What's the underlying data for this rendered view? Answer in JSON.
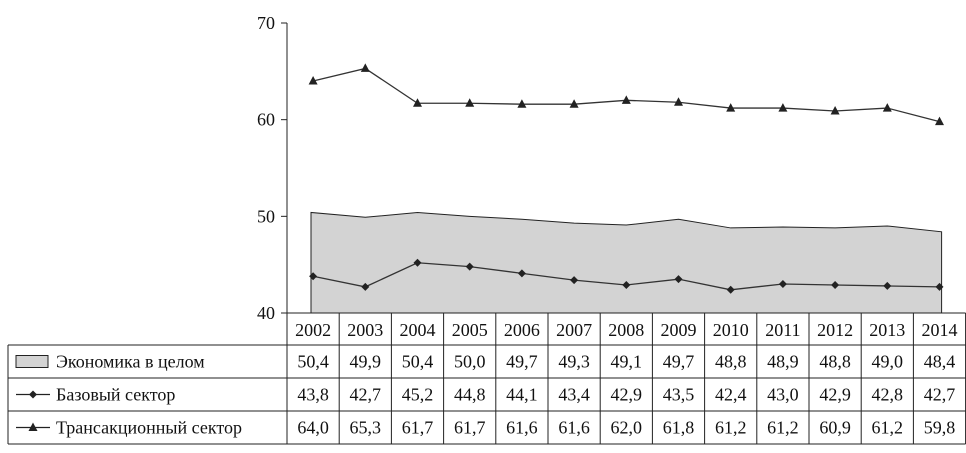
{
  "chart_data": {
    "type": "line",
    "ylim": [
      40,
      70
    ],
    "yticks": [
      "40",
      "50",
      "60",
      "70"
    ],
    "categories": [
      "2002",
      "2003",
      "2004",
      "2005",
      "2006",
      "2007",
      "2008",
      "2009",
      "2010",
      "2011",
      "2012",
      "2013",
      "2014"
    ],
    "series": [
      {
        "name": "Экономика в целом",
        "style": "area",
        "color": "#d3d3d3",
        "values": [
          50.4,
          49.9,
          50.4,
          50.0,
          49.7,
          49.3,
          49.1,
          49.7,
          48.8,
          48.9,
          48.8,
          49.0,
          48.4
        ],
        "labels": [
          "50,4",
          "49,9",
          "50,4",
          "50,0",
          "49,7",
          "49,3",
          "49,1",
          "49,7",
          "48,8",
          "48,9",
          "48,8",
          "49,0",
          "48,4"
        ]
      },
      {
        "name": "Базовый сектор",
        "style": "line",
        "marker": "diamond",
        "color": "#333333",
        "values": [
          43.8,
          42.7,
          45.2,
          44.8,
          44.1,
          43.4,
          42.9,
          43.5,
          42.4,
          43.0,
          42.9,
          42.8,
          42.7
        ],
        "labels": [
          "43,8",
          "42,7",
          "45,2",
          "44,8",
          "44,1",
          "43,4",
          "42,9",
          "43,5",
          "42,4",
          "43,0",
          "42,9",
          "42,8",
          "42,7"
        ]
      },
      {
        "name": "Трансакционный сектор",
        "style": "line",
        "marker": "triangle",
        "color": "#333333",
        "values": [
          64.0,
          65.3,
          61.7,
          61.7,
          61.6,
          61.6,
          62.0,
          61.8,
          61.2,
          61.2,
          60.9,
          61.2,
          59.8
        ],
        "labels": [
          "64,0",
          "65,3",
          "61,7",
          "61,7",
          "61,6",
          "61,6",
          "62,0",
          "61,8",
          "61,2",
          "61,2",
          "60,9",
          "61,2",
          "59,8"
        ]
      }
    ]
  }
}
